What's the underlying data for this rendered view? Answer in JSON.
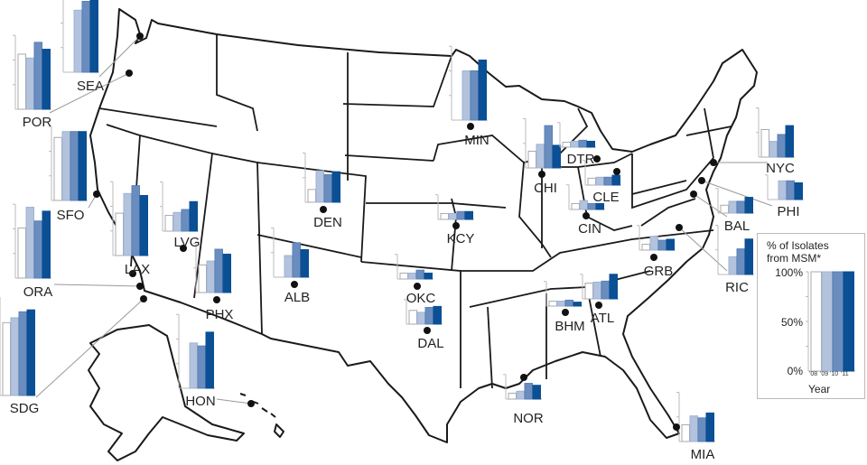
{
  "legend": {
    "title_line1": "% of Isolates",
    "title_line2": "from MSM*",
    "ticks": [
      "100%",
      "50%",
      "0%"
    ],
    "years": [
      "'08",
      "'09",
      "'10",
      "'11"
    ],
    "xlabel": "Year",
    "example_values": [
      100,
      100,
      100,
      100
    ]
  },
  "colors": {
    "2008": "#ffffff",
    "2009": "#b3c3dd",
    "2010": "#6a8dbf",
    "2011": "#0b4f94",
    "outline": "#1a1a1a"
  },
  "chart_data": {
    "type": "bar",
    "title": "% of Isolates from MSM*",
    "xlabel": "Year",
    "categories": [
      "'08",
      "'09",
      "'10",
      "'11"
    ],
    "ylim": [
      0,
      100
    ],
    "cities": [
      {
        "code": "SEA",
        "values": [
          null,
          63,
          72,
          73
        ]
      },
      {
        "code": "POR",
        "values": [
          56,
          52,
          68,
          61
        ]
      },
      {
        "code": "SFO",
        "values": [
          64,
          70,
          70,
          70
        ]
      },
      {
        "code": "ORA",
        "values": [
          51,
          72,
          58,
          68
        ]
      },
      {
        "code": "SDG",
        "values": [
          74,
          79,
          85,
          87
        ]
      },
      {
        "code": "LAX",
        "values": [
          43,
          63,
          71,
          61
        ]
      },
      {
        "code": "LVG",
        "values": [
          16,
          19,
          22,
          30
        ]
      },
      {
        "code": "PHX",
        "values": [
          28,
          32,
          44,
          39
        ]
      },
      {
        "code": "HON",
        "values": [
          null,
          46,
          43,
          57
        ]
      },
      {
        "code": "DEN",
        "values": [
          13,
          32,
          28,
          31
        ]
      },
      {
        "code": "ALB",
        "values": [
          null,
          22,
          35,
          28
        ]
      },
      {
        "code": "MIN",
        "values": [
          null,
          50,
          50,
          61
        ]
      },
      {
        "code": "CHI",
        "values": [
          17,
          24,
          43,
          23
        ]
      },
      {
        "code": "DTR",
        "values": [
          5,
          6,
          7,
          6
        ]
      },
      {
        "code": "CLE",
        "values": [
          7,
          8,
          8,
          10
        ]
      },
      {
        "code": "CIN",
        "values": [
          6,
          9,
          6,
          6
        ]
      },
      {
        "code": "KCY",
        "values": [
          6,
          6,
          8,
          8
        ]
      },
      {
        "code": "OKC",
        "values": [
          6,
          6,
          9,
          6
        ]
      },
      {
        "code": "DAL",
        "values": [
          14,
          12,
          17,
          18
        ]
      },
      {
        "code": "BHM",
        "values": [
          5,
          5,
          6,
          4
        ]
      },
      {
        "code": "ATL",
        "values": [
          16,
          17,
          18,
          25
        ]
      },
      {
        "code": "NYC",
        "values": [
          28,
          16,
          23,
          32
        ]
      },
      {
        "code": "PHI",
        "values": [
          null,
          19,
          19,
          17
        ]
      },
      {
        "code": "BAL",
        "values": [
          8,
          12,
          12,
          16
        ]
      },
      {
        "code": "RIC",
        "values": [
          null,
          18,
          26,
          36
        ]
      },
      {
        "code": "GRB",
        "values": [
          6,
          14,
          10,
          11
        ]
      },
      {
        "code": "NOR",
        "values": [
          6,
          8,
          16,
          14
        ]
      },
      {
        "code": "MIA",
        "values": [
          17,
          26,
          24,
          29
        ]
      }
    ]
  }
}
